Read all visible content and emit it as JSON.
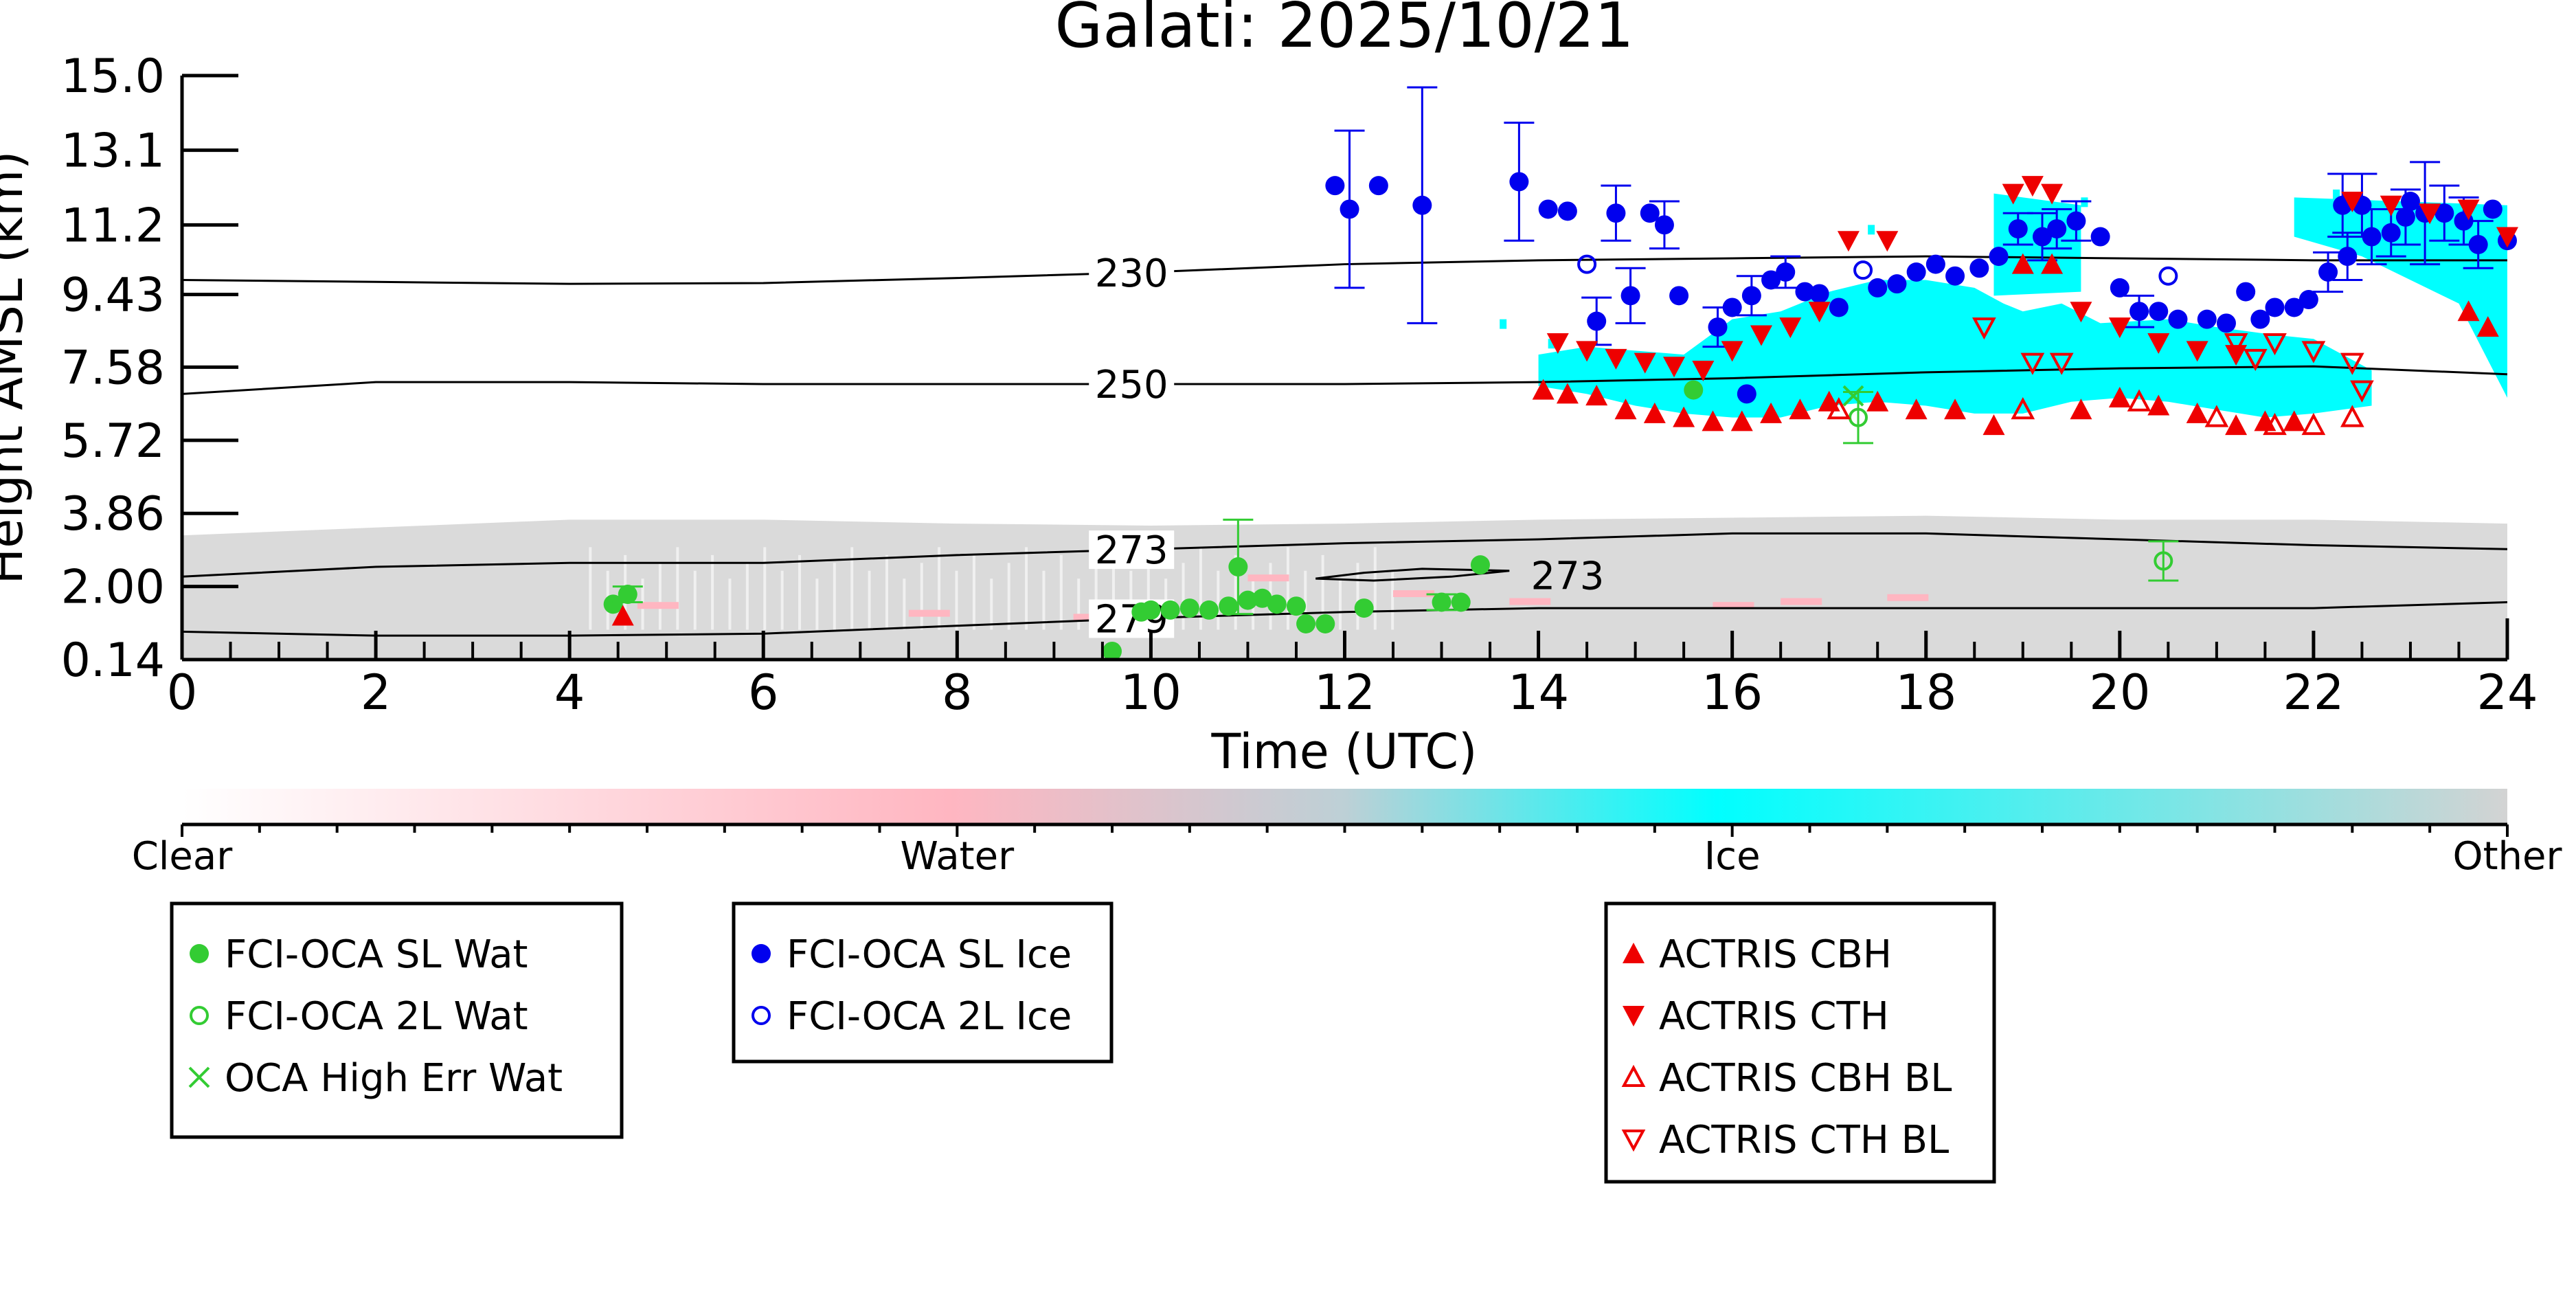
{
  "chart_data": {
    "type": "scatter",
    "title": "Galati: 2025/10/21",
    "xlabel": "Time (UTC)",
    "ylabel": "Height AMSL (km)",
    "xlim": [
      0,
      24
    ],
    "ylim": [
      0.14,
      15.0
    ],
    "x_ticks": [
      0,
      2,
      4,
      6,
      8,
      10,
      12,
      14,
      16,
      18,
      20,
      22,
      24
    ],
    "y_ticks": [
      0.14,
      2.0,
      3.86,
      5.72,
      7.58,
      9.43,
      11.2,
      13.1,
      15.0
    ],
    "y_tick_labels": [
      "0.14",
      "2.00",
      "3.86",
      "5.72",
      "7.58",
      "9.43",
      "11.2",
      "13.1",
      "15.0"
    ],
    "grid": false,
    "colorbar": {
      "labels": [
        "Clear",
        "Water",
        "Ice",
        "Other"
      ],
      "colors": [
        "#ffffff",
        "#ffb6c1",
        "#00ffff",
        "#d3d3d3"
      ]
    },
    "contours": [
      {
        "label": "230",
        "label_x": 9.8,
        "points": [
          [
            0,
            9.8
          ],
          [
            2,
            9.75
          ],
          [
            4,
            9.7
          ],
          [
            6,
            9.72
          ],
          [
            8,
            9.85
          ],
          [
            10,
            10.0
          ],
          [
            12,
            10.2
          ],
          [
            14,
            10.3
          ],
          [
            16,
            10.35
          ],
          [
            18,
            10.4
          ],
          [
            20,
            10.35
          ],
          [
            22,
            10.3
          ],
          [
            24,
            10.3
          ]
        ]
      },
      {
        "label": "250",
        "label_x": 9.8,
        "points": [
          [
            0,
            6.9
          ],
          [
            2,
            7.2
          ],
          [
            4,
            7.2
          ],
          [
            6,
            7.15
          ],
          [
            8,
            7.15
          ],
          [
            10,
            7.15
          ],
          [
            12,
            7.15
          ],
          [
            14,
            7.2
          ],
          [
            16,
            7.3
          ],
          [
            18,
            7.45
          ],
          [
            20,
            7.55
          ],
          [
            22,
            7.6
          ],
          [
            24,
            7.4
          ]
        ]
      },
      {
        "label": "273",
        "label_x": 9.8,
        "points": [
          [
            0,
            2.25
          ],
          [
            2,
            2.5
          ],
          [
            4,
            2.6
          ],
          [
            6,
            2.6
          ],
          [
            8,
            2.8
          ],
          [
            10,
            2.95
          ],
          [
            12,
            3.1
          ],
          [
            14,
            3.2
          ],
          [
            16,
            3.35
          ],
          [
            18,
            3.35
          ],
          [
            20,
            3.2
          ],
          [
            22,
            3.05
          ],
          [
            24,
            2.95
          ]
        ]
      },
      {
        "label": "279",
        "label_x": 9.8,
        "points": [
          [
            0,
            0.85
          ],
          [
            2,
            0.75
          ],
          [
            4,
            0.75
          ],
          [
            6,
            0.8
          ],
          [
            8,
            1.0
          ],
          [
            10,
            1.2
          ],
          [
            12,
            1.35
          ],
          [
            14,
            1.45
          ],
          [
            16,
            1.45
          ],
          [
            18,
            1.45
          ],
          [
            20,
            1.45
          ],
          [
            22,
            1.45
          ],
          [
            24,
            1.6
          ]
        ]
      }
    ],
    "contour_island": {
      "label": "273",
      "points": [
        [
          11.7,
          2.2
        ],
        [
          12.2,
          2.35
        ],
        [
          12.8,
          2.45
        ],
        [
          13.7,
          2.4
        ],
        [
          13.1,
          2.25
        ],
        [
          12.3,
          2.15
        ],
        [
          11.7,
          2.2
        ]
      ]
    },
    "series": [
      {
        "name": "FCI-OCA SL Wat",
        "color": "#33cc33",
        "marker": "filled-circle",
        "points": [
          [
            4.45,
            1.55
          ],
          [
            4.6,
            1.8
          ],
          [
            9.6,
            0.35
          ],
          [
            9.9,
            1.35
          ],
          [
            10.0,
            1.4
          ],
          [
            10.2,
            1.4
          ],
          [
            10.4,
            1.45
          ],
          [
            10.6,
            1.4
          ],
          [
            10.8,
            1.5
          ],
          [
            11.0,
            1.65
          ],
          [
            10.9,
            2.5
          ],
          [
            11.15,
            1.7
          ],
          [
            11.3,
            1.55
          ],
          [
            11.5,
            1.5
          ],
          [
            11.6,
            1.05
          ],
          [
            11.8,
            1.05
          ],
          [
            12.2,
            1.45
          ],
          [
            13.0,
            1.6
          ],
          [
            13.2,
            1.6
          ],
          [
            13.4,
            2.55
          ],
          [
            15.6,
            7.0
          ]
        ],
        "errors": [
          null,
          0.2,
          null,
          null,
          null,
          null,
          null,
          null,
          null,
          null,
          1.2,
          null,
          null,
          null,
          null,
          null,
          null,
          0.2,
          null,
          null,
          null
        ]
      },
      {
        "name": "FCI-OCA 2L Wat",
        "color": "#33cc33",
        "marker": "open-circle",
        "points": [
          [
            17.3,
            6.3
          ],
          [
            20.45,
            2.65
          ]
        ],
        "errors": [
          0.65,
          0.5
        ]
      },
      {
        "name": "OCA High Err Wat",
        "color": "#33cc33",
        "marker": "x",
        "points": [
          [
            17.25,
            6.85
          ]
        ]
      },
      {
        "name": "FCI-OCA SL Ice",
        "color": "#0000ee",
        "marker": "filled-circle",
        "points": [
          [
            11.9,
            12.2
          ],
          [
            12.05,
            11.6
          ],
          [
            12.35,
            12.2
          ],
          [
            12.8,
            11.7
          ],
          [
            13.8,
            12.3
          ],
          [
            14.1,
            11.6
          ],
          [
            14.3,
            11.55
          ],
          [
            14.6,
            8.75
          ],
          [
            14.8,
            11.5
          ],
          [
            14.95,
            9.4
          ],
          [
            15.15,
            11.5
          ],
          [
            15.3,
            11.2
          ],
          [
            15.45,
            9.4
          ],
          [
            15.85,
            8.6
          ],
          [
            16.0,
            9.1
          ],
          [
            16.2,
            9.4
          ],
          [
            16.4,
            9.8
          ],
          [
            16.55,
            10.0
          ],
          [
            16.75,
            9.5
          ],
          [
            16.9,
            9.45
          ],
          [
            17.1,
            9.1
          ],
          [
            17.5,
            9.6
          ],
          [
            17.7,
            9.7
          ],
          [
            17.9,
            10.0
          ],
          [
            18.1,
            10.2
          ],
          [
            18.3,
            9.9
          ],
          [
            18.55,
            10.1
          ],
          [
            18.75,
            10.4
          ],
          [
            18.95,
            11.1
          ],
          [
            19.2,
            10.9
          ],
          [
            19.35,
            11.1
          ],
          [
            19.55,
            11.3
          ],
          [
            19.8,
            10.9
          ],
          [
            20.0,
            9.6
          ],
          [
            20.2,
            9.0
          ],
          [
            20.4,
            9.0
          ],
          [
            20.6,
            8.8
          ],
          [
            20.9,
            8.8
          ],
          [
            21.1,
            8.7
          ],
          [
            21.3,
            9.5
          ],
          [
            21.45,
            8.8
          ],
          [
            21.6,
            9.1
          ],
          [
            21.8,
            9.1
          ],
          [
            21.95,
            9.3
          ],
          [
            22.15,
            10.0
          ],
          [
            22.35,
            10.4
          ],
          [
            22.6,
            10.9
          ],
          [
            22.8,
            11.0
          ],
          [
            22.95,
            11.4
          ],
          [
            23.15,
            11.5
          ],
          [
            23.35,
            11.5
          ],
          [
            23.55,
            11.3
          ],
          [
            23.7,
            10.7
          ],
          [
            23.85,
            11.6
          ],
          [
            24.0,
            10.8
          ],
          [
            23.0,
            11.8
          ],
          [
            22.3,
            11.7
          ],
          [
            22.5,
            11.7
          ],
          [
            16.15,
            6.9
          ]
        ],
        "errors": [
          null,
          2.0,
          null,
          3.0,
          1.5,
          null,
          null,
          0.6,
          0.7,
          0.7,
          null,
          0.6,
          null,
          0.5,
          null,
          0.5,
          null,
          0.4,
          null,
          null,
          null,
          null,
          null,
          null,
          null,
          null,
          null,
          null,
          0.4,
          0.6,
          0.5,
          0.5,
          null,
          null,
          0.4,
          null,
          null,
          null,
          null,
          null,
          null,
          null,
          null,
          null,
          0.5,
          0.6,
          0.7,
          0.6,
          0.7,
          1.3,
          0.7,
          0.6,
          0.6,
          null,
          null,
          null,
          0.8,
          0.8,
          null
        ]
      },
      {
        "name": "FCI-OCA 2L Ice",
        "color": "#0000ee",
        "marker": "open-circle",
        "points": [
          [
            14.5,
            10.2
          ],
          [
            17.35,
            10.05
          ],
          [
            20.5,
            9.9
          ]
        ],
        "errors": [
          null,
          null,
          null
        ]
      },
      {
        "name": "ACTRIS CBH",
        "color": "#ee0000",
        "marker": "triangle-up",
        "points": [
          [
            4.55,
            1.25
          ],
          [
            14.05,
            7.0
          ],
          [
            14.3,
            6.9
          ],
          [
            14.6,
            6.85
          ],
          [
            14.9,
            6.5
          ],
          [
            15.2,
            6.4
          ],
          [
            15.5,
            6.3
          ],
          [
            15.8,
            6.2
          ],
          [
            16.1,
            6.2
          ],
          [
            16.4,
            6.4
          ],
          [
            16.7,
            6.5
          ],
          [
            17.0,
            6.7
          ],
          [
            17.5,
            6.7
          ],
          [
            17.9,
            6.5
          ],
          [
            18.3,
            6.5
          ],
          [
            18.7,
            6.1
          ],
          [
            19.0,
            10.2
          ],
          [
            19.3,
            10.2
          ],
          [
            19.6,
            6.5
          ],
          [
            20.0,
            6.8
          ],
          [
            20.4,
            6.6
          ],
          [
            20.8,
            6.4
          ],
          [
            21.2,
            6.1
          ],
          [
            21.5,
            6.2
          ],
          [
            21.8,
            6.2
          ],
          [
            23.6,
            9.0
          ],
          [
            23.8,
            8.6
          ]
        ]
      },
      {
        "name": "ACTRIS CTH",
        "color": "#ee0000",
        "marker": "triangle-down",
        "points": [
          [
            14.2,
            8.2
          ],
          [
            14.5,
            8.0
          ],
          [
            14.8,
            7.8
          ],
          [
            15.1,
            7.7
          ],
          [
            15.4,
            7.6
          ],
          [
            15.7,
            7.5
          ],
          [
            16.0,
            8.0
          ],
          [
            16.3,
            8.4
          ],
          [
            16.6,
            8.6
          ],
          [
            16.9,
            9.0
          ],
          [
            17.2,
            10.8
          ],
          [
            17.6,
            10.8
          ],
          [
            18.9,
            12.0
          ],
          [
            19.1,
            12.2
          ],
          [
            19.3,
            12.0
          ],
          [
            19.6,
            9.0
          ],
          [
            20.0,
            8.6
          ],
          [
            20.4,
            8.2
          ],
          [
            20.8,
            8.0
          ],
          [
            21.2,
            7.9
          ],
          [
            22.4,
            11.8
          ],
          [
            22.8,
            11.7
          ],
          [
            23.2,
            11.5
          ],
          [
            23.6,
            11.6
          ],
          [
            24.0,
            10.9
          ]
        ]
      },
      {
        "name": "ACTRIS CBH BL",
        "color": "#ee0000",
        "marker": "open-triangle-up",
        "points": [
          [
            17.1,
            6.5
          ],
          [
            19.0,
            6.5
          ],
          [
            20.2,
            6.7
          ],
          [
            21.0,
            6.3
          ],
          [
            21.6,
            6.1
          ],
          [
            22.0,
            6.1
          ],
          [
            22.4,
            6.3
          ]
        ]
      },
      {
        "name": "ACTRIS CTH BL",
        "color": "#ee0000",
        "marker": "open-triangle-down",
        "points": [
          [
            18.6,
            8.6
          ],
          [
            19.1,
            7.7
          ],
          [
            19.4,
            7.7
          ],
          [
            21.2,
            8.2
          ],
          [
            21.6,
            8.2
          ],
          [
            22.0,
            8.0
          ],
          [
            22.4,
            7.7
          ],
          [
            22.5,
            7.0
          ],
          [
            21.4,
            7.8
          ]
        ]
      }
    ],
    "legends": [
      {
        "entries": [
          "FCI-OCA SL Wat",
          "FCI-OCA 2L Wat",
          "OCA High Err Wat"
        ]
      },
      {
        "entries": [
          "FCI-OCA SL Ice",
          "FCI-OCA 2L Ice"
        ]
      },
      {
        "entries": [
          "ACTRIS CBH",
          "ACTRIS CTH",
          "ACTRIS CBH BL",
          "ACTRIS CTH BL"
        ]
      }
    ]
  }
}
